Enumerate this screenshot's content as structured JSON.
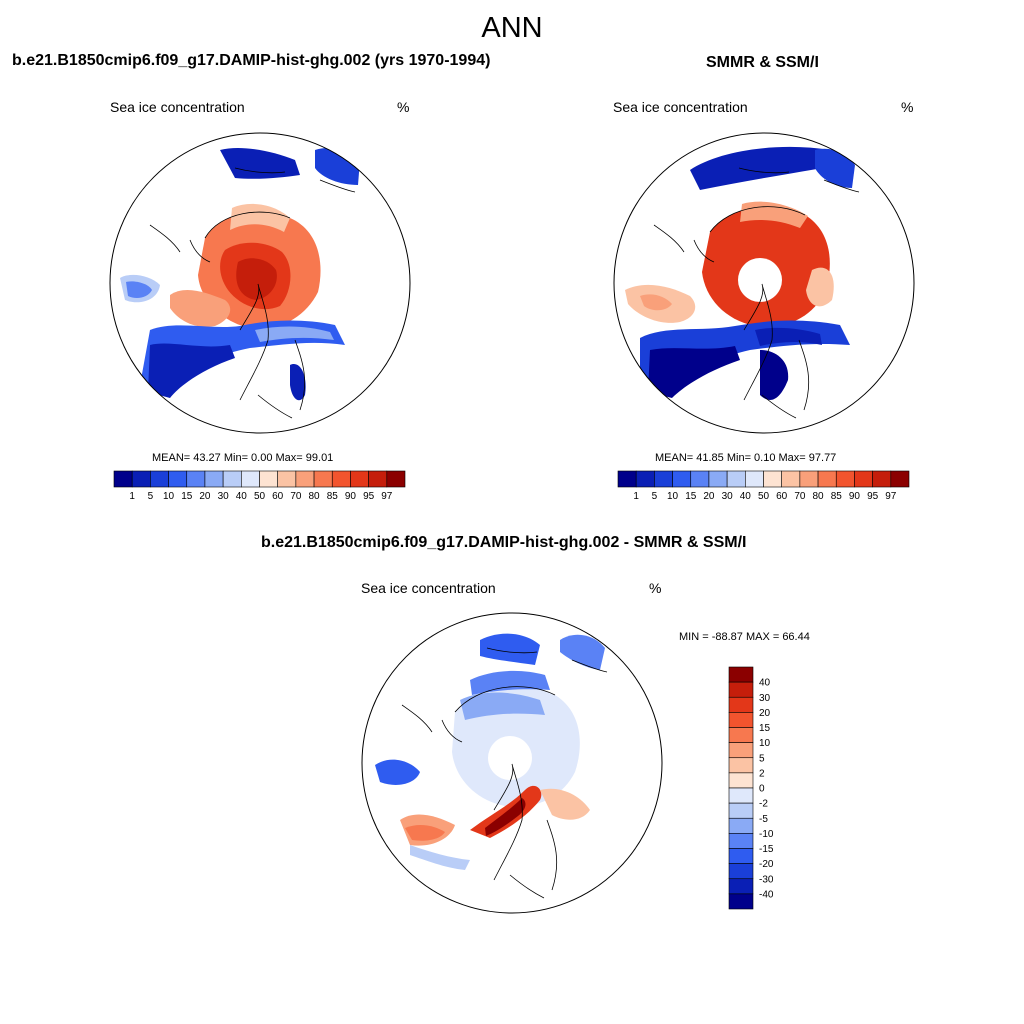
{
  "page": {
    "title": "ANN"
  },
  "colors": {
    "abs_scale": [
      "#00008b",
      "#0a1fb5",
      "#1a3fd8",
      "#2f5cf0",
      "#5a82f5",
      "#8aaaf5",
      "#b9cdf7",
      "#dfe8fb",
      "#fde3d2",
      "#fbc3a4",
      "#f9a07a",
      "#f7784f",
      "#f2542e",
      "#e33719",
      "#c51e0b",
      "#8b0000"
    ],
    "diff_scale": [
      "#00008b",
      "#0a1fb5",
      "#1a3fd8",
      "#2f5cf0",
      "#5a82f5",
      "#8aaaf5",
      "#b9cdf7",
      "#dfe8fb",
      "#fde3d2",
      "#fbc3a4",
      "#f9a07a",
      "#f7784f",
      "#f2542e",
      "#e33719",
      "#c51e0b",
      "#8b0000"
    ],
    "land_outline": "#000000"
  },
  "panels": [
    {
      "header": "b.e21.B1850cmip6.f09_g17.DAMIP-hist-ghg.002 (yrs 1970-1994)",
      "left_label": "Sea ice concentration",
      "right_label": "%",
      "stats": "MEAN=  43.27  Min=   0.00  Max=  99.01",
      "pole_hole": false
    },
    {
      "header": "SMMR & SSM/I",
      "left_label": "Sea ice concentration",
      "right_label": "%",
      "stats": "MEAN=  41.85  Min=   0.10  Max=  97.77",
      "pole_hole": true
    }
  ],
  "diff_panel": {
    "header": "b.e21.B1850cmip6.f09_g17.DAMIP-hist-ghg.002 - SMMR & SSM/I",
    "left_label": "Sea ice concentration",
    "right_label": "%",
    "minmax": "MIN = -88.87 MAX =  66.44"
  },
  "chart_data": [
    {
      "type": "heatmap",
      "projection": "north polar stereographic",
      "title": "b.e21.B1850cmip6.f09_g17.DAMIP-hist-ghg.002 (yrs 1970-1994)",
      "variable": "Sea ice concentration",
      "units": "%",
      "mean": 43.27,
      "min": 0.0,
      "max": 99.01,
      "contour_levels": [
        1,
        5,
        10,
        15,
        20,
        30,
        40,
        50,
        60,
        70,
        80,
        85,
        90,
        95,
        97
      ]
    },
    {
      "type": "heatmap",
      "projection": "north polar stereographic",
      "title": "SMMR & SSM/I",
      "variable": "Sea ice concentration",
      "units": "%",
      "mean": 41.85,
      "min": 0.1,
      "max": 97.77,
      "contour_levels": [
        1,
        5,
        10,
        15,
        20,
        30,
        40,
        50,
        60,
        70,
        80,
        85,
        90,
        95,
        97
      ]
    },
    {
      "type": "heatmap",
      "projection": "north polar stereographic",
      "title": "b.e21.B1850cmip6.f09_g17.DAMIP-hist-ghg.002 - SMMR & SSM/I",
      "variable": "Sea ice concentration",
      "units": "%",
      "min": -88.87,
      "max": 66.44,
      "contour_levels": [
        -40,
        -30,
        -20,
        -15,
        -10,
        -5,
        -2,
        0,
        2,
        5,
        10,
        15,
        20,
        30,
        40
      ]
    }
  ]
}
